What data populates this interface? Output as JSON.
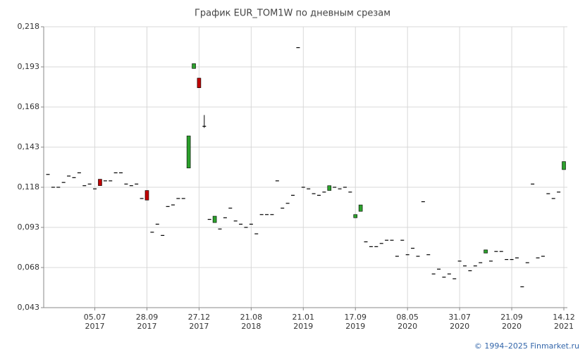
{
  "chart_data": {
    "type": "candlestick",
    "title": "График EUR_TOM1W по дневным срезам",
    "footer": "© 1994–2025 Finmarket.ru",
    "ylim": [
      0.043,
      0.218
    ],
    "yticks": [
      {
        "value": 0.043,
        "label": "0,043"
      },
      {
        "value": 0.068,
        "label": "0,068"
      },
      {
        "value": 0.093,
        "label": "0,093"
      },
      {
        "value": 0.118,
        "label": "0,118"
      },
      {
        "value": 0.143,
        "label": "0,143"
      },
      {
        "value": 0.168,
        "label": "0,168"
      },
      {
        "value": 0.193,
        "label": "0,193"
      },
      {
        "value": 0.218,
        "label": "0,218"
      }
    ],
    "grid": true,
    "up_color": "#2ca02c",
    "down_color": "#c00000",
    "flat_color": "#000000",
    "categories": [
      null,
      null,
      null,
      null,
      null,
      null,
      null,
      null,
      null,
      [
        "05.07",
        "2017"
      ],
      null,
      null,
      null,
      null,
      null,
      null,
      null,
      null,
      null,
      [
        "28.09",
        "2017"
      ],
      null,
      null,
      null,
      null,
      null,
      null,
      null,
      null,
      null,
      [
        "27.12",
        "2017"
      ],
      null,
      null,
      null,
      null,
      null,
      null,
      null,
      null,
      null,
      [
        "21.08",
        "2018"
      ],
      null,
      null,
      null,
      null,
      null,
      null,
      null,
      null,
      null,
      [
        "21.01",
        "2019"
      ],
      null,
      null,
      null,
      null,
      null,
      null,
      null,
      null,
      null,
      [
        "17.09",
        "2019"
      ],
      null,
      null,
      null,
      null,
      null,
      null,
      null,
      null,
      null,
      [
        "08.05",
        "2020"
      ],
      null,
      null,
      null,
      null,
      null,
      null,
      null,
      null,
      null,
      [
        "31.07",
        "2020"
      ],
      null,
      null,
      null,
      null,
      null,
      null,
      null,
      null,
      null,
      [
        "21.09",
        "2020"
      ],
      null,
      null,
      null,
      null,
      null,
      null,
      null,
      null,
      null,
      [
        "14.12",
        "2021"
      ]
    ],
    "open": [
      0.126,
      0.118,
      0.118,
      0.121,
      0.125,
      0.124,
      0.127,
      0.119,
      0.12,
      0.117,
      0.123,
      0.122,
      0.122,
      0.127,
      0.127,
      0.12,
      0.119,
      0.12,
      0.111,
      0.116,
      0.09,
      0.095,
      0.088,
      0.106,
      0.107,
      0.111,
      0.111,
      0.13,
      0.192,
      0.186,
      0.156,
      0.098,
      0.096,
      0.092,
      0.099,
      0.105,
      0.097,
      0.095,
      0.093,
      0.095,
      0.089,
      0.101,
      0.101,
      0.101,
      0.122,
      0.105,
      0.108,
      0.113,
      0.205,
      0.118,
      0.117,
      0.114,
      0.113,
      0.115,
      0.116,
      0.118,
      0.117,
      0.118,
      0.115,
      0.099,
      0.103,
      0.084,
      0.081,
      0.081,
      0.083,
      0.085,
      0.085,
      0.075,
      0.085,
      0.076,
      0.08,
      0.075,
      0.109,
      0.076,
      0.064,
      0.067,
      0.062,
      0.064,
      0.061,
      0.072,
      0.069,
      0.066,
      0.069,
      0.071,
      0.077,
      0.072,
      0.078,
      0.078,
      0.073,
      0.073,
      0.074,
      0.056,
      0.071,
      0.12,
      0.074,
      0.075,
      0.114,
      0.111,
      0.115,
      0.129
    ],
    "high": [
      0.126,
      0.118,
      0.118,
      0.121,
      0.125,
      0.124,
      0.127,
      0.119,
      0.12,
      0.117,
      0.123,
      0.122,
      0.122,
      0.127,
      0.127,
      0.12,
      0.119,
      0.12,
      0.111,
      0.116,
      0.09,
      0.095,
      0.088,
      0.106,
      0.107,
      0.111,
      0.111,
      0.15,
      0.195,
      0.186,
      0.163,
      0.098,
      0.1,
      0.092,
      0.099,
      0.105,
      0.097,
      0.095,
      0.093,
      0.095,
      0.089,
      0.101,
      0.101,
      0.101,
      0.122,
      0.105,
      0.108,
      0.113,
      0.205,
      0.118,
      0.117,
      0.114,
      0.113,
      0.115,
      0.119,
      0.118,
      0.117,
      0.118,
      0.115,
      0.101,
      0.107,
      0.084,
      0.081,
      0.081,
      0.083,
      0.085,
      0.085,
      0.075,
      0.085,
      0.076,
      0.08,
      0.075,
      0.109,
      0.076,
      0.064,
      0.067,
      0.062,
      0.064,
      0.061,
      0.072,
      0.069,
      0.066,
      0.069,
      0.071,
      0.079,
      0.072,
      0.078,
      0.078,
      0.073,
      0.073,
      0.074,
      0.056,
      0.071,
      0.12,
      0.074,
      0.075,
      0.114,
      0.111,
      0.115,
      0.134
    ],
    "low": [
      0.126,
      0.118,
      0.118,
      0.121,
      0.125,
      0.124,
      0.127,
      0.119,
      0.12,
      0.117,
      0.119,
      0.122,
      0.122,
      0.127,
      0.127,
      0.12,
      0.119,
      0.12,
      0.111,
      0.11,
      0.09,
      0.095,
      0.088,
      0.106,
      0.107,
      0.111,
      0.111,
      0.13,
      0.192,
      0.18,
      0.155,
      0.098,
      0.096,
      0.092,
      0.099,
      0.105,
      0.097,
      0.095,
      0.093,
      0.095,
      0.089,
      0.101,
      0.101,
      0.101,
      0.122,
      0.105,
      0.108,
      0.113,
      0.205,
      0.118,
      0.117,
      0.114,
      0.113,
      0.115,
      0.116,
      0.118,
      0.117,
      0.118,
      0.115,
      0.099,
      0.103,
      0.084,
      0.081,
      0.081,
      0.083,
      0.085,
      0.085,
      0.075,
      0.085,
      0.076,
      0.08,
      0.075,
      0.109,
      0.076,
      0.064,
      0.067,
      0.062,
      0.064,
      0.061,
      0.072,
      0.069,
      0.066,
      0.069,
      0.071,
      0.077,
      0.072,
      0.078,
      0.078,
      0.073,
      0.073,
      0.074,
      0.056,
      0.071,
      0.12,
      0.074,
      0.075,
      0.114,
      0.111,
      0.115,
      0.129
    ],
    "close": [
      0.126,
      0.118,
      0.118,
      0.121,
      0.125,
      0.124,
      0.127,
      0.119,
      0.12,
      0.117,
      0.119,
      0.122,
      0.122,
      0.127,
      0.127,
      0.12,
      0.119,
      0.12,
      0.111,
      0.11,
      0.09,
      0.095,
      0.088,
      0.106,
      0.107,
      0.111,
      0.111,
      0.15,
      0.195,
      0.18,
      0.156,
      0.098,
      0.1,
      0.092,
      0.099,
      0.105,
      0.097,
      0.095,
      0.093,
      0.095,
      0.089,
      0.101,
      0.101,
      0.101,
      0.122,
      0.105,
      0.108,
      0.113,
      0.205,
      0.118,
      0.117,
      0.114,
      0.113,
      0.115,
      0.119,
      0.118,
      0.117,
      0.118,
      0.115,
      0.101,
      0.107,
      0.084,
      0.081,
      0.081,
      0.083,
      0.085,
      0.085,
      0.075,
      0.085,
      0.076,
      0.08,
      0.075,
      0.109,
      0.076,
      0.064,
      0.067,
      0.062,
      0.064,
      0.061,
      0.072,
      0.069,
      0.066,
      0.069,
      0.071,
      0.079,
      0.072,
      0.078,
      0.078,
      0.073,
      0.073,
      0.074,
      0.056,
      0.071,
      0.12,
      0.074,
      0.075,
      0.114,
      0.111,
      0.115,
      0.134
    ]
  }
}
